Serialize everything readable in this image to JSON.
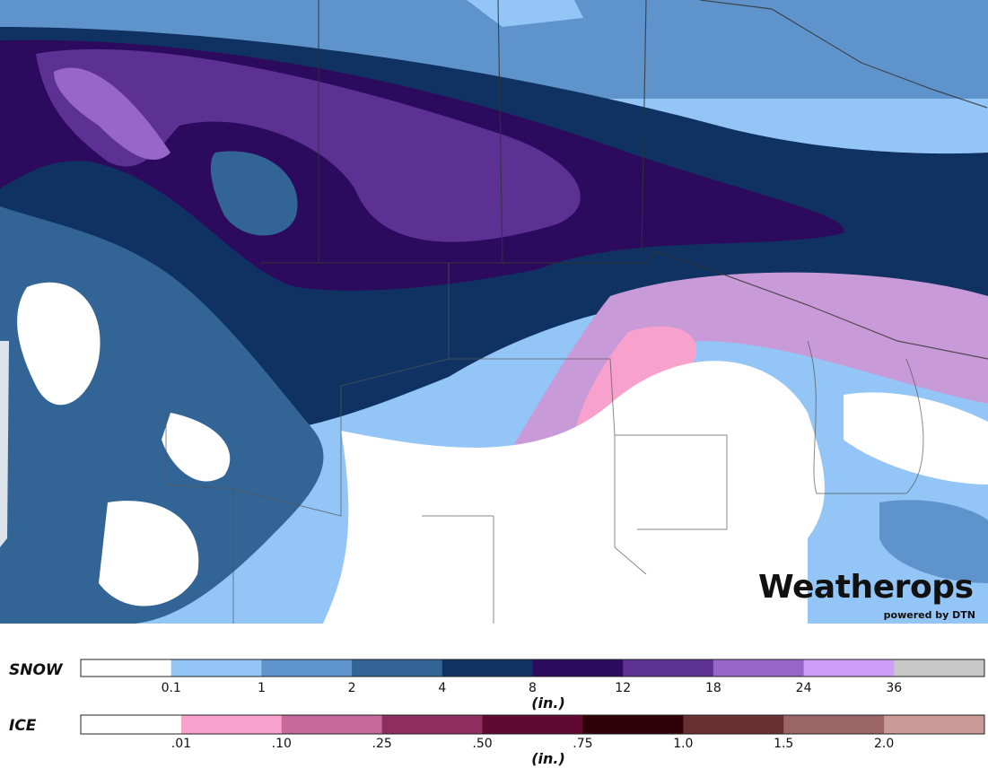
{
  "logo": {
    "name": "Weatherops",
    "tagline": "powered by DTN"
  },
  "legends": [
    {
      "label": "SNOW",
      "unit": "(in.)",
      "ticks": [
        "0.1",
        "1",
        "2",
        "4",
        "8",
        "12",
        "18",
        "24",
        "36"
      ],
      "colors": [
        "#ffffff",
        "#93c5f7",
        "#5f93cb",
        "#336496",
        "#0f3262",
        "#2c0b5f",
        "#5d3194",
        "#9866c9",
        "#cc9ef7",
        "#c8c8c8"
      ]
    },
    {
      "label": "ICE",
      "unit": "(in.)",
      "ticks": [
        ".01",
        ".10",
        ".25",
        ".50",
        ".75",
        "1.0",
        "1.5",
        "2.0"
      ],
      "colors": [
        "#ffffff",
        "#f9a1cd",
        "#c6689a",
        "#8f2e5e",
        "#5f0830",
        "#2f0008",
        "#6a2f31",
        "#9b6566",
        "#c99a98"
      ]
    }
  ]
}
